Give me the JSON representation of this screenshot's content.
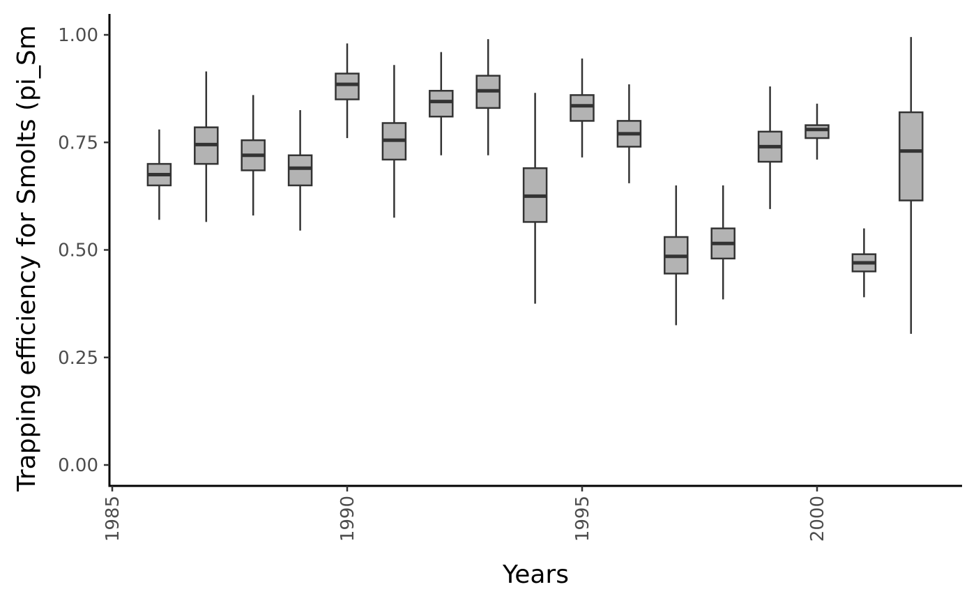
{
  "chart_data": {
    "type": "boxplot",
    "xlabel": "Years",
    "ylabel": "Trapping efficiency for Smolts (pi_Sm",
    "xlim": [
      1985,
      2003
    ],
    "ylim": [
      -0.05,
      1.05
    ],
    "x_ticks": [
      1985,
      1990,
      1995,
      2000
    ],
    "y_ticks": [
      0.0,
      0.25,
      0.5,
      0.75,
      1.0
    ],
    "y_tick_labels": [
      "0.00",
      "0.25",
      "0.50",
      "0.75",
      "1.00"
    ],
    "grid": false,
    "legend": "none",
    "box_fill": "#b3b3b3",
    "line_color": "#333333",
    "boxes": [
      {
        "year": 1986,
        "whisker_low": 0.57,
        "q1": 0.65,
        "median": 0.675,
        "q3": 0.7,
        "whisker_high": 0.78
      },
      {
        "year": 1987,
        "whisker_low": 0.565,
        "q1": 0.7,
        "median": 0.745,
        "q3": 0.785,
        "whisker_high": 0.915
      },
      {
        "year": 1988,
        "whisker_low": 0.58,
        "q1": 0.685,
        "median": 0.72,
        "q3": 0.755,
        "whisker_high": 0.86
      },
      {
        "year": 1989,
        "whisker_low": 0.545,
        "q1": 0.65,
        "median": 0.69,
        "q3": 0.72,
        "whisker_high": 0.825
      },
      {
        "year": 1990,
        "whisker_low": 0.76,
        "q1": 0.85,
        "median": 0.885,
        "q3": 0.91,
        "whisker_high": 0.98
      },
      {
        "year": 1991,
        "whisker_low": 0.575,
        "q1": 0.71,
        "median": 0.755,
        "q3": 0.795,
        "whisker_high": 0.93
      },
      {
        "year": 1992,
        "whisker_low": 0.72,
        "q1": 0.81,
        "median": 0.845,
        "q3": 0.87,
        "whisker_high": 0.96
      },
      {
        "year": 1993,
        "whisker_low": 0.72,
        "q1": 0.83,
        "median": 0.87,
        "q3": 0.905,
        "whisker_high": 0.99
      },
      {
        "year": 1994,
        "whisker_low": 0.375,
        "q1": 0.565,
        "median": 0.625,
        "q3": 0.69,
        "whisker_high": 0.865
      },
      {
        "year": 1995,
        "whisker_low": 0.715,
        "q1": 0.8,
        "median": 0.835,
        "q3": 0.86,
        "whisker_high": 0.945
      },
      {
        "year": 1996,
        "whisker_low": 0.655,
        "q1": 0.74,
        "median": 0.77,
        "q3": 0.8,
        "whisker_high": 0.885
      },
      {
        "year": 1997,
        "whisker_low": 0.325,
        "q1": 0.445,
        "median": 0.485,
        "q3": 0.53,
        "whisker_high": 0.65
      },
      {
        "year": 1998,
        "whisker_low": 0.385,
        "q1": 0.48,
        "median": 0.515,
        "q3": 0.55,
        "whisker_high": 0.65
      },
      {
        "year": 1999,
        "whisker_low": 0.595,
        "q1": 0.705,
        "median": 0.74,
        "q3": 0.775,
        "whisker_high": 0.88
      },
      {
        "year": 2000,
        "whisker_low": 0.71,
        "q1": 0.76,
        "median": 0.78,
        "q3": 0.79,
        "whisker_high": 0.84
      },
      {
        "year": 2001,
        "whisker_low": 0.39,
        "q1": 0.45,
        "median": 0.47,
        "q3": 0.49,
        "whisker_high": 0.55
      },
      {
        "year": 2002,
        "whisker_low": 0.305,
        "q1": 0.615,
        "median": 0.73,
        "q3": 0.82,
        "whisker_high": 0.995
      }
    ]
  }
}
